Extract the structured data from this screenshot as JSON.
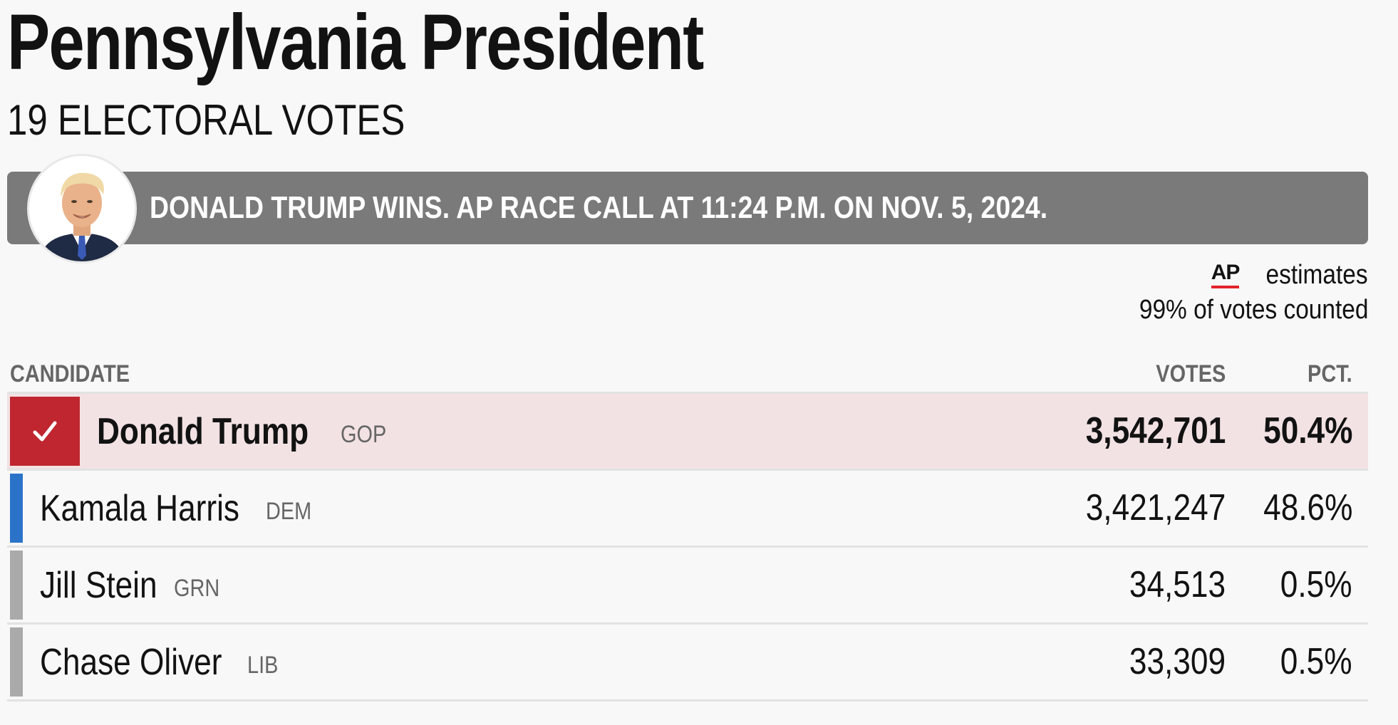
{
  "race": {
    "title": "Pennsylvania President",
    "electoral_votes": "19 ELECTORAL VOTES"
  },
  "banner": {
    "text": "DONALD TRUMP WINS. AP RACE CALL AT 11:24 P.M. ON NOV. 5, 2024.",
    "avatar_icon": "candidate-portrait-icon"
  },
  "source": {
    "logo": "AP",
    "label": "estimates",
    "counted": "99% of votes counted"
  },
  "table": {
    "headers": {
      "candidate": "CANDIDATE",
      "votes": "VOTES",
      "pct": "PCT."
    },
    "rows": [
      {
        "name": "Donald Trump",
        "party": "GOP",
        "votes": "3,542,701",
        "pct": "50.4%",
        "winner": true,
        "color": "#c0262f"
      },
      {
        "name": "Kamala Harris",
        "party": "DEM",
        "votes": "3,421,247",
        "pct": "48.6%",
        "winner": false,
        "color": "#2b73c9"
      },
      {
        "name": "Jill Stein",
        "party": "GRN",
        "votes": "34,513",
        "pct": "0.5%",
        "winner": false,
        "color": "#aaaaaa"
      },
      {
        "name": "Chase Oliver",
        "party": "LIB",
        "votes": "33,309",
        "pct": "0.5%",
        "winner": false,
        "color": "#aaaaaa"
      }
    ]
  },
  "colors": {
    "winner_row_bg": "#f2e2e3",
    "banner_bg": "#7a7a7a",
    "ap_underline": "#e2232a"
  }
}
